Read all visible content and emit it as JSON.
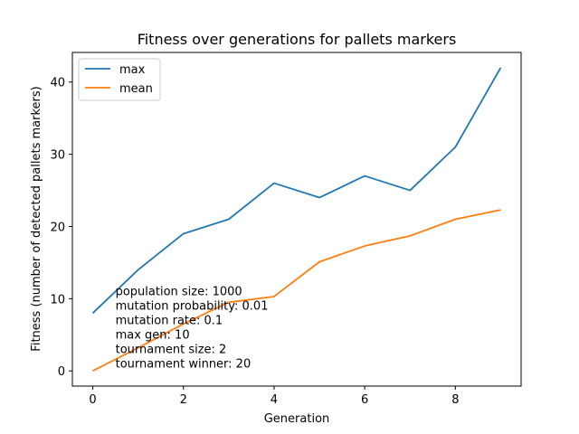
{
  "chart_data": {
    "type": "line",
    "title": "Fitness over generations for pallets markers",
    "xlabel": "Generation",
    "ylabel": "Fitness (number of detected pallets markers)",
    "x": [
      0,
      1,
      2,
      3,
      4,
      5,
      6,
      7,
      8,
      9
    ],
    "xlim": [
      -0.45,
      9.45
    ],
    "ylim": [
      -2.1,
      44.1
    ],
    "xticks": [
      0,
      2,
      4,
      6,
      8
    ],
    "yticks": [
      0,
      10,
      20,
      30,
      40
    ],
    "grid": false,
    "legend_position": "upper-left",
    "series": [
      {
        "name": "max",
        "color": "#1f77b4",
        "values": [
          8,
          14,
          19,
          21,
          26,
          24,
          27,
          25,
          31,
          42
        ]
      },
      {
        "name": "mean",
        "color": "#ff7f0e",
        "values": [
          0,
          3.2,
          6.5,
          9.5,
          10.3,
          15.1,
          17.3,
          18.7,
          21.0,
          22.3
        ]
      }
    ],
    "annotation": {
      "x": 0.5,
      "y": 10.5,
      "lines": [
        "population size: 1000",
        "mutation probability: 0.01",
        "mutation rate: 0.1",
        "max gen: 10",
        "tournament size: 2",
        "tournament winner: 20"
      ]
    }
  }
}
